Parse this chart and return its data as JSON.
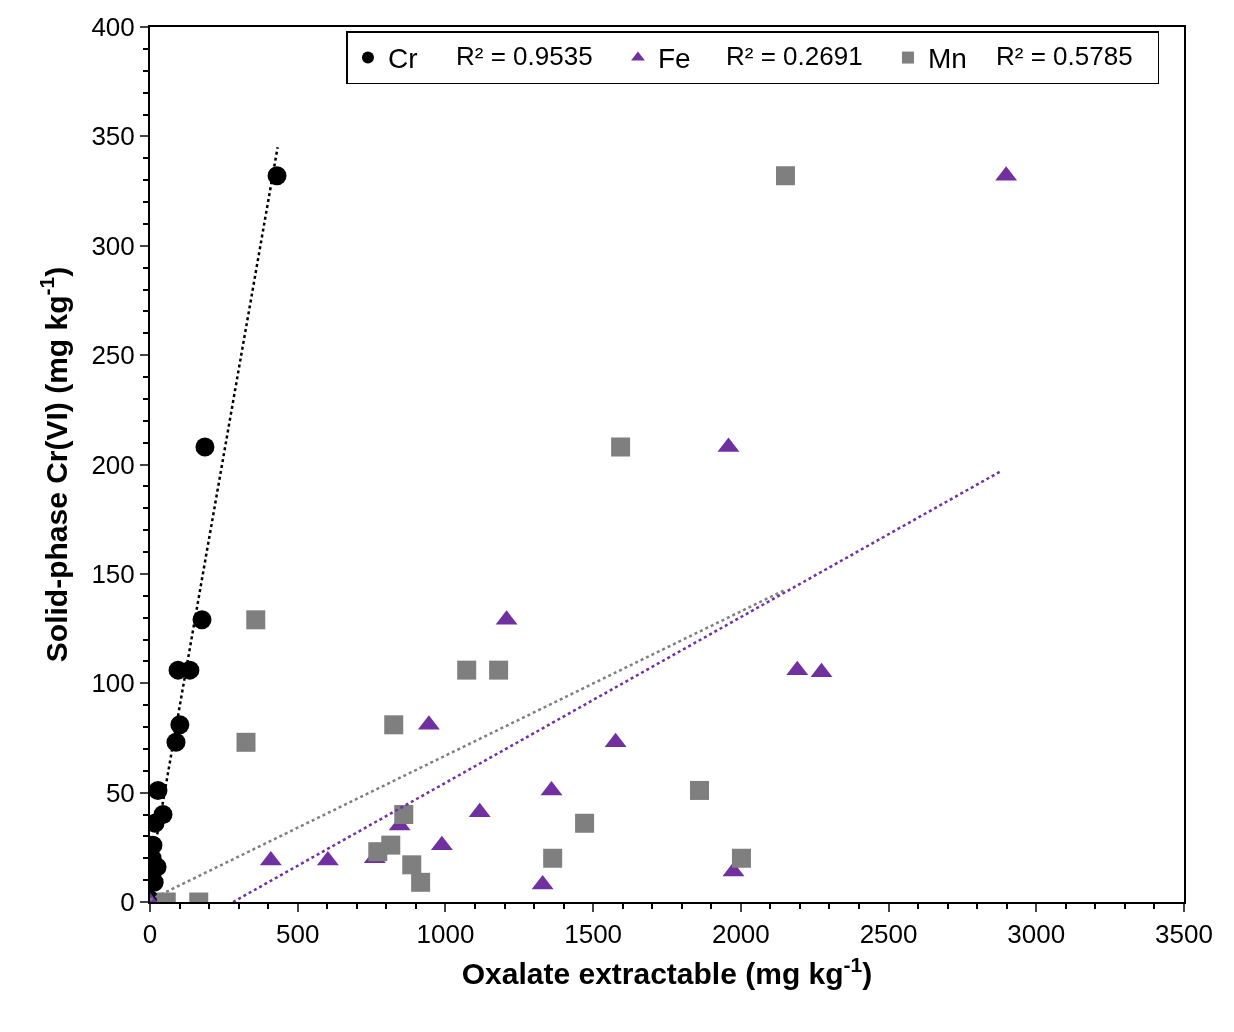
{
  "chart_data": {
    "type": "scatter",
    "xlabel": "Oxalate extractable (mg kg$^{-1}$)",
    "ylabel": "Solid-phase Cr(VI) (mg kg$^{-1}$)",
    "xlim": [
      0,
      3500
    ],
    "xticks": [
      0,
      500,
      1000,
      1500,
      2000,
      2500,
      3000,
      3500
    ],
    "ylim": [
      0,
      400
    ],
    "yticks": [
      0,
      50,
      100,
      150,
      200,
      250,
      300,
      350,
      400
    ],
    "legend": "top",
    "annotations": [
      "R² = 0.9535",
      "R² = 0.2691",
      "R² = 0.5785"
    ],
    "series": [
      {
        "name": "Cr",
        "color": "#000000",
        "marker": "circle",
        "x": [
          430,
          186,
          176,
          95,
          135,
          101,
          88,
          27,
          44,
          17,
          10,
          7,
          24,
          14,
          0
        ],
        "values": [
          332,
          208,
          129,
          106,
          106,
          81,
          73,
          51,
          40,
          36,
          26,
          20,
          16,
          9,
          1
        ]
      },
      {
        "name": "Fe",
        "color": "#7030a0",
        "marker": "triangle",
        "x": [
          2898,
          1958,
          1207,
          2191,
          2273,
          944,
          1576,
          1359,
          1116,
          845,
          988,
          409,
          602,
          761,
          1329,
          1975,
          0
        ],
        "values": [
          332,
          208,
          129,
          106,
          105,
          81,
          73,
          51,
          41,
          35,
          26,
          19,
          19,
          20,
          8,
          14,
          0
        ]
      },
      {
        "name": "Mn",
        "color": "#7f7f7f",
        "marker": "square",
        "x": [
          2151,
          1593,
          358,
          1072,
          1180,
          825,
          325,
          1860,
          859,
          1471,
          815,
          771,
          886,
          916,
          1363,
          2002,
          55,
          165
        ],
        "values": [
          332,
          208,
          129,
          106,
          106,
          81,
          73,
          51,
          40,
          36,
          26,
          23,
          17,
          9,
          20,
          20,
          0,
          0
        ]
      },
      {
        "type": "line",
        "line_style": "dotted",
        "marker": "none",
        "color": "#000000",
        "x": [
          0,
          432
        ],
        "values": [
          12,
          345
        ]
      },
      {
        "type": "line",
        "line_style": "dotted",
        "marker": "none",
        "color": "#7030a0",
        "x": [
          281,
          2881
        ],
        "values": [
          0,
          197
        ]
      },
      {
        "type": "line",
        "line_style": "dotted",
        "marker": "none",
        "color": "#7f7f7f",
        "x": [
          0,
          2154
        ],
        "values": [
          1,
          143
        ]
      }
    ]
  }
}
